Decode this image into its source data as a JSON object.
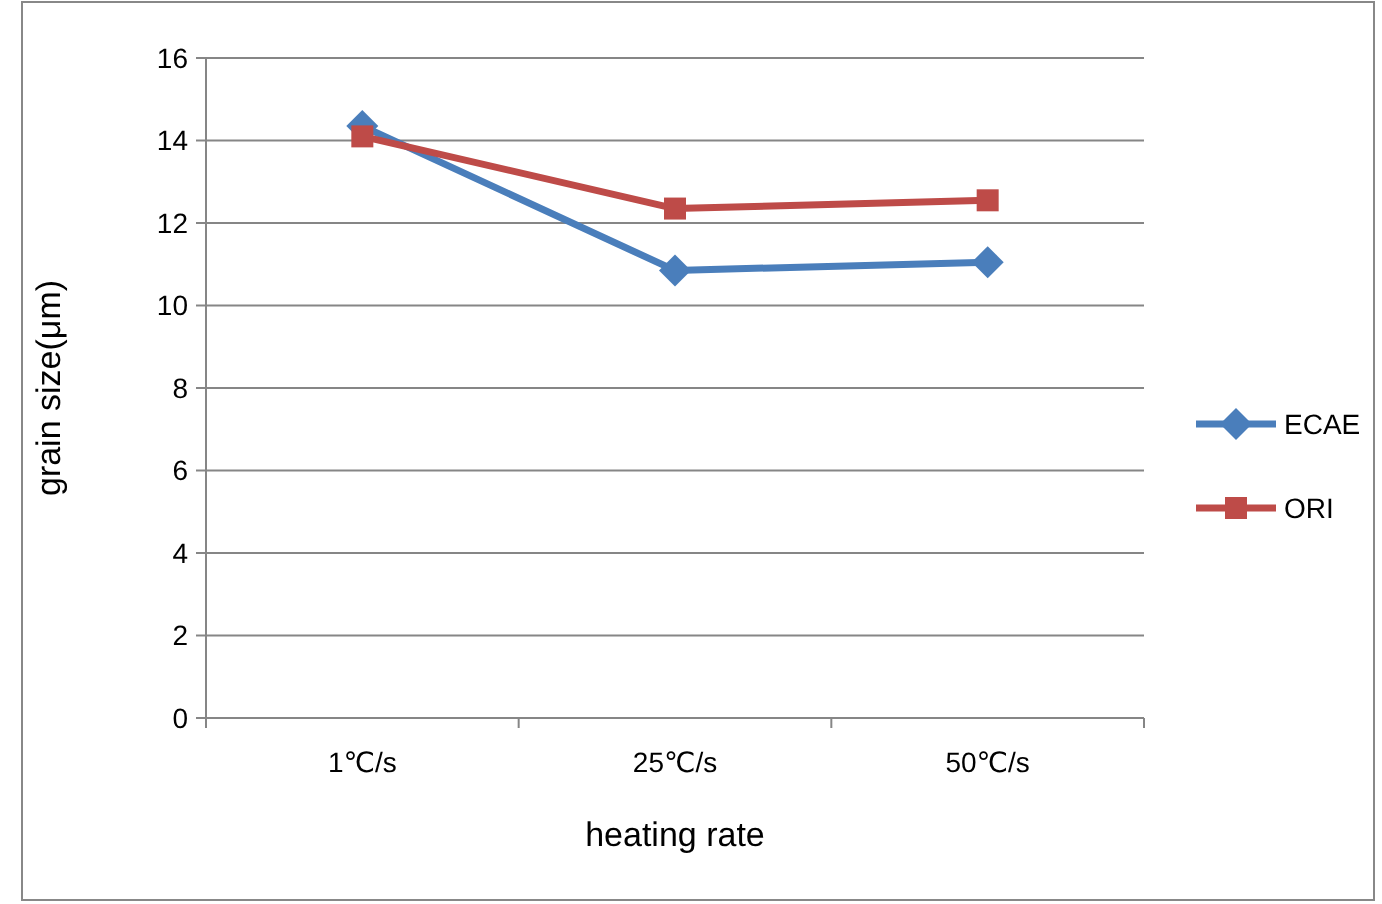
{
  "chart_data": {
    "type": "line",
    "xlabel": "heating rate",
    "ylabel": "grain size(μm)",
    "categories": [
      "1℃/s",
      "25℃/s",
      "50℃/s"
    ],
    "series": [
      {
        "name": "ECAE",
        "color": "#4a7ebb",
        "values": [
          14.35,
          10.85,
          11.05
        ],
        "marker": "diamond"
      },
      {
        "name": "ORI",
        "color": "#be4b48",
        "values": [
          14.1,
          12.35,
          12.55
        ],
        "marker": "square"
      }
    ],
    "ylim": [
      0,
      16
    ],
    "yticks": [
      0,
      2,
      4,
      6,
      8,
      10,
      12,
      14,
      16
    ],
    "grid": "y",
    "legend": "right"
  }
}
